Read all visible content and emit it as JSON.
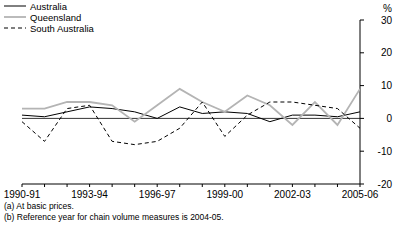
{
  "chart_data": {
    "type": "line",
    "y_label": "%",
    "categories": [
      "1990-91",
      null,
      null,
      "1993-94",
      null,
      null,
      "1996-97",
      null,
      null,
      "1999-00",
      null,
      null,
      "2002-03",
      null,
      null,
      "2005-06"
    ],
    "series": [
      {
        "name": "Australia",
        "color": "#000000",
        "line_style": "solid",
        "values": [
          1,
          0.5,
          2,
          3.5,
          3,
          2,
          0,
          3.5,
          1.5,
          2,
          1.5,
          -1,
          1,
          1,
          0.5,
          2
        ]
      },
      {
        "name": "Queensland",
        "color": "#b4b4b4",
        "line_style": "solid",
        "values": [
          3,
          3,
          5,
          5,
          4,
          -1,
          4,
          9,
          5,
          2,
          7,
          4,
          -2,
          5,
          -2,
          9
        ]
      },
      {
        "name": "South Australia",
        "color": "#000000",
        "line_style": "dashed",
        "values": [
          -1,
          -7,
          3,
          4,
          -7,
          -8,
          -7,
          -3,
          5,
          -5.5,
          1,
          5,
          5,
          4,
          3,
          -3
        ]
      }
    ],
    "ylim": [
      -20,
      30
    ],
    "yticks": [
      -20,
      -10,
      0,
      10,
      20,
      30
    ],
    "grid": false,
    "legend": "top-left",
    "notes": [
      "(a) At basic prices.",
      "(b) Reference year for chain volume measures is 2004-05."
    ]
  }
}
